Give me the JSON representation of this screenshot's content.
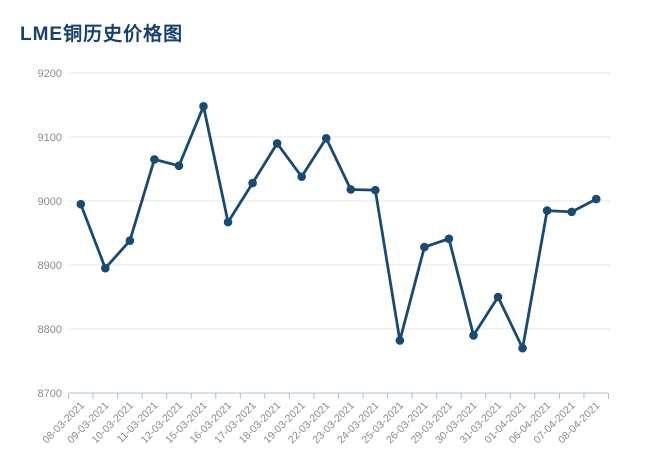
{
  "header": {
    "title": "LME铜历史价格图"
  },
  "colors": {
    "title": "#17416b",
    "line": "#1a4971",
    "marker": "#1a4971",
    "grid": "#e6e6e6",
    "axis": "#a9c2d6",
    "tick_label": "#8a8a8a",
    "background": "#ffffff"
  },
  "chart_data": {
    "type": "line",
    "title": "LME铜历史价格图",
    "xlabel": "",
    "ylabel": "",
    "legend": "none",
    "grid": true,
    "ylim": [
      8700,
      9200
    ],
    "yticks": [
      8700,
      8800,
      8900,
      9000,
      9100,
      9200
    ],
    "categories": [
      "08-03-2021",
      "09-03-2021",
      "10-03-2021",
      "11-03-2021",
      "12-03-2021",
      "15-03-2021",
      "16-03-2021",
      "17-03-2021",
      "18-03-2021",
      "19-03-2021",
      "22-03-2021",
      "23-03-2021",
      "24-03-2021",
      "25-03-2021",
      "26-03-2021",
      "29-03-2021",
      "30-03-2021",
      "31-03-2021",
      "01-04-2021",
      "06-04-2021",
      "07-04-2021",
      "08-04-2021"
    ],
    "values": [
      8995,
      8895,
      8938,
      9065,
      9055,
      9148,
      8967,
      9028,
      9090,
      9038,
      9098,
      9018,
      9017,
      8782,
      8928,
      8941,
      8790,
      8850,
      8770,
      8985,
      8983,
      9003
    ]
  }
}
